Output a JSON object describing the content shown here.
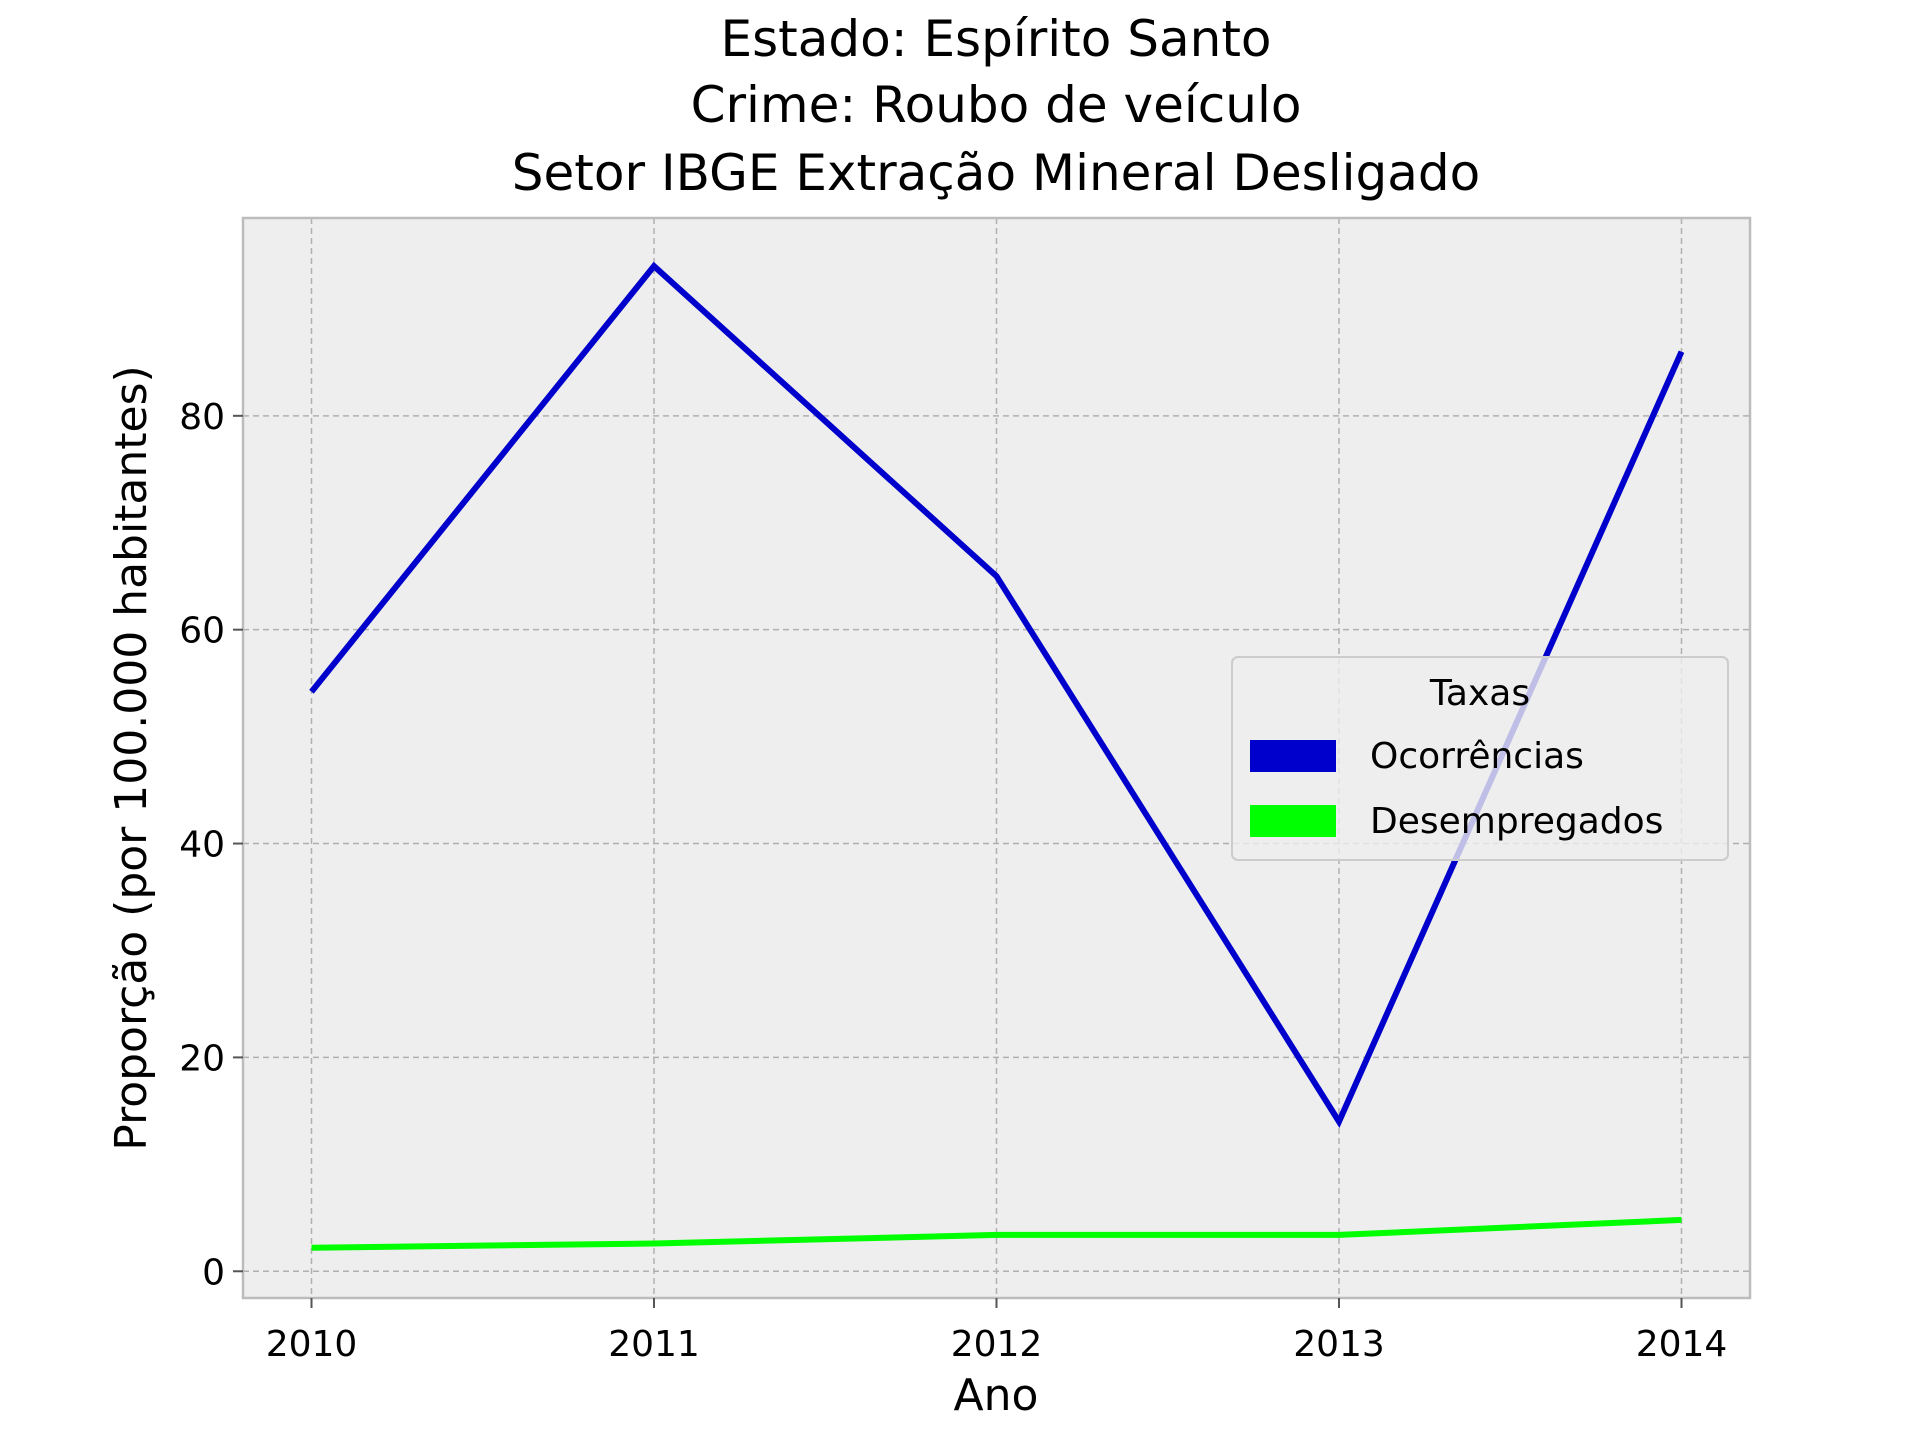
{
  "chart_data": {
    "type": "line",
    "title_lines": [
      "Estado: Espírito Santo",
      "Crime: Roubo de veículo",
      "Setor IBGE  Extração Mineral   Desligado"
    ],
    "xlabel": "Ano",
    "ylabel": "Proporção (por 100.000 habitantes)",
    "x": [
      "2010",
      "2011",
      "2012",
      "2013",
      "2014"
    ],
    "xlim": [
      2009.8,
      2014.2
    ],
    "ylim": [
      -2.5,
      98.5
    ],
    "yticks": [
      "0",
      "20",
      "40",
      "60",
      "80"
    ],
    "grid": true,
    "legend": {
      "title": "Taxas",
      "placement": "center-right"
    },
    "series": [
      {
        "name": "Ocorrências",
        "color": "#0000cc",
        "values": [
          54.2,
          94.0,
          65.0,
          14.0,
          86.0
        ]
      },
      {
        "name": "Desempregados",
        "color": "#00ff00",
        "values": [
          2.2,
          2.6,
          3.4,
          3.4,
          4.8
        ]
      }
    ]
  }
}
